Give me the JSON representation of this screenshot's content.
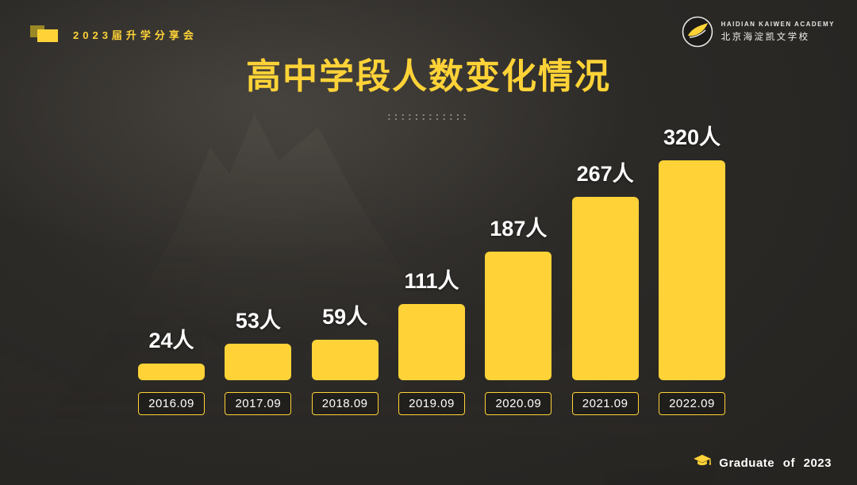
{
  "slide": {
    "badge": {
      "label": "2023届升学分享会"
    },
    "logo": {
      "name_en": "HAIDIAN KAIWEN ACADEMY",
      "name_cn": "北京海淀凯文学校"
    },
    "title": "高中学段人数变化情况",
    "dots": "::::::::::::",
    "footer": {
      "label": "Graduate of 2023"
    }
  },
  "colors": {
    "accent_yellow": "#FFD337",
    "background_dark": "#2A2825",
    "text_white": "#FFFFFF"
  },
  "chart_data": {
    "type": "bar",
    "title": "高中学段人数变化情况",
    "categories": [
      "2016.09",
      "2017.09",
      "2018.09",
      "2019.09",
      "2020.09",
      "2021.09",
      "2022.09"
    ],
    "values": [
      24,
      53,
      59,
      111,
      187,
      267,
      320
    ],
    "value_labels": [
      "24人",
      "53人",
      "59人",
      "111人",
      "187人",
      "267人",
      "320人"
    ],
    "xlabel": "",
    "ylabel": "",
    "ylim": [
      0,
      320
    ],
    "bar_color": "#FFD337",
    "grid": false,
    "legend": "none"
  }
}
